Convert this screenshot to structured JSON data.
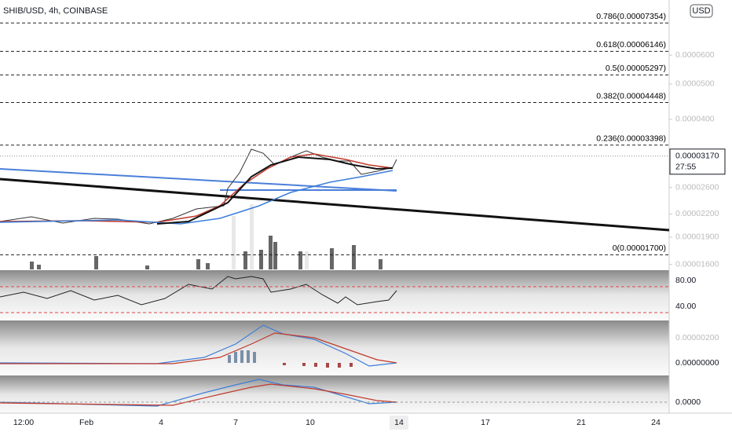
{
  "header": {
    "symbol": "SHIB/USD, 4h, COINBASE",
    "currency": "USD"
  },
  "price_axis": {
    "log": true,
    "ylim": [
      1.55e-05,
      8.5e-05
    ],
    "ticks": [
      {
        "value": 6e-05,
        "label": "0.0000600"
      },
      {
        "value": 5e-05,
        "label": "0.0000500"
      },
      {
        "value": 4e-05,
        "label": "0.0000400"
      },
      {
        "value": 2.6e-05,
        "label": "0.00002600"
      },
      {
        "value": 2.2e-05,
        "label": "0.00002200"
      },
      {
        "value": 1.9e-05,
        "label": "0.00001900"
      },
      {
        "value": 1.6e-05,
        "label": "0.00001600"
      }
    ],
    "last_price": {
      "value": 3.17e-05,
      "label": "0.00003170"
    },
    "countdown": "27:55"
  },
  "fib_levels": [
    {
      "value": 7.354e-05,
      "label": "0.786(0.00007354)"
    },
    {
      "value": 6.146e-05,
      "label": "0.618(0.00006146)"
    },
    {
      "value": 5.297e-05,
      "label": "0.5(0.00005297)"
    },
    {
      "value": 4.448e-05,
      "label": "0.382(0.00004448)"
    },
    {
      "value": 3.398e-05,
      "label": "0.236(0.00003398)"
    },
    {
      "value": 1.7e-05,
      "label": "0(0.00001700)"
    }
  ],
  "rsi_panel": {
    "labels": [
      "80.00",
      "40.00"
    ]
  },
  "macd_panel": {
    "labels": [
      "0.00000200",
      "0.00000000"
    ]
  },
  "third_panel": {
    "labels": [
      "0.0000"
    ]
  },
  "time_axis": {
    "labels": [
      "12:00",
      "Feb",
      "4",
      "7",
      "10",
      "14",
      "17",
      "21",
      "24"
    ]
  }
}
